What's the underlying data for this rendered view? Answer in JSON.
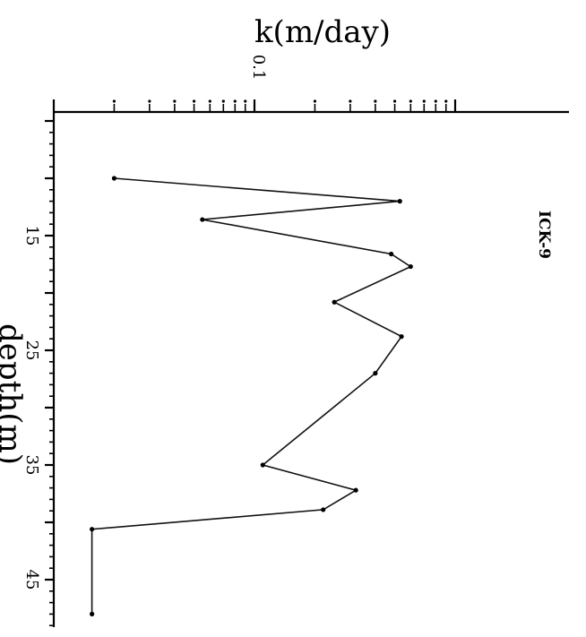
{
  "chart_data": {
    "type": "line",
    "title": "",
    "ylabel": "k(m/day)",
    "xlabel": "depth(m)",
    "y_scale": "log",
    "ylim": [
      0.01,
      1
    ],
    "xlim": [
      5,
      50
    ],
    "x_ticks": [
      {
        "value": 15,
        "label": "15"
      },
      {
        "value": 25,
        "label": "25"
      },
      {
        "value": 35,
        "label": "35"
      },
      {
        "value": 45,
        "label": "45"
      }
    ],
    "y_tick_labels": [
      {
        "value": 0.1,
        "label": "0.1"
      }
    ],
    "grid": false,
    "series": [
      {
        "name": "ICK-9",
        "points": [
          [
            10.0,
            0.02
          ],
          [
            12.0,
            0.53
          ],
          [
            13.6,
            0.055
          ],
          [
            16.6,
            0.48
          ],
          [
            17.7,
            0.6
          ],
          [
            20.8,
            0.25
          ],
          [
            23.8,
            0.54
          ],
          [
            27.0,
            0.4
          ],
          [
            35.0,
            0.11
          ],
          [
            37.2,
            0.32
          ],
          [
            38.9,
            0.22
          ],
          [
            40.6,
            0.0155
          ],
          [
            48.0,
            0.0155
          ]
        ]
      }
    ]
  }
}
